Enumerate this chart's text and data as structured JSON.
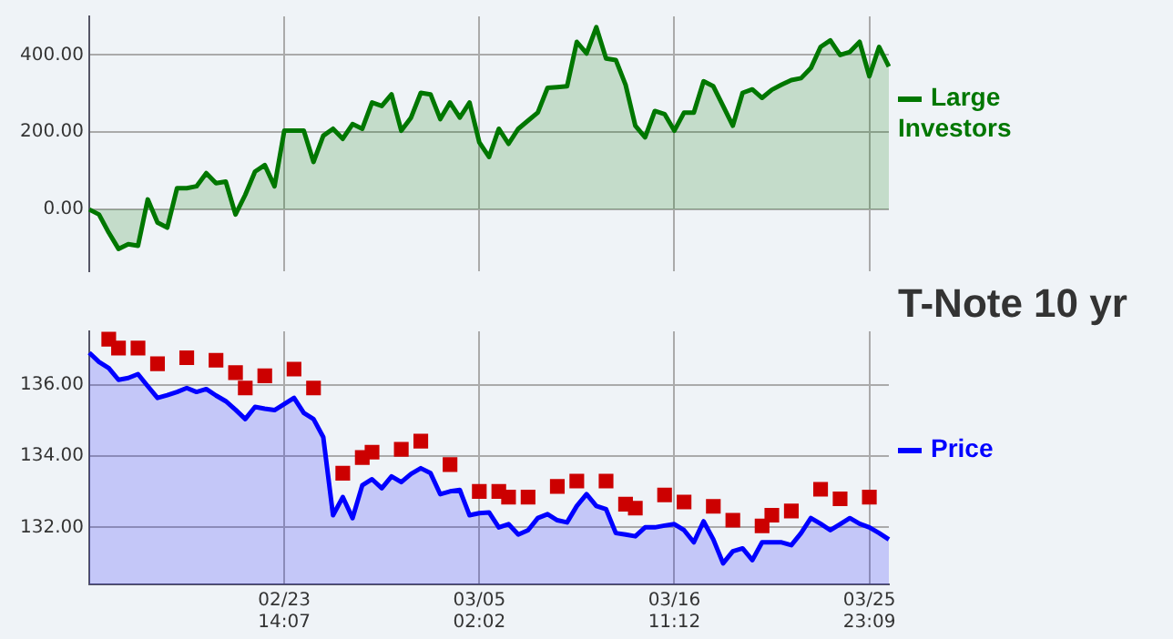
{
  "chart_data": [
    {
      "type": "area",
      "categories": [
        null,
        null,
        null,
        null,
        null,
        null,
        null,
        null,
        null,
        null,
        null,
        null,
        null,
        null,
        null,
        null,
        null,
        null,
        null,
        null,
        null,
        null,
        null,
        null,
        null,
        null,
        null,
        null,
        null,
        null,
        null,
        null,
        null,
        null,
        null,
        null,
        null,
        null,
        null,
        null,
        null,
        null,
        null,
        null,
        null,
        null,
        null,
        null,
        null,
        null,
        null,
        null,
        null,
        null,
        null,
        null,
        null,
        null,
        null,
        null,
        null,
        null,
        null,
        null,
        null,
        null,
        null,
        null,
        null,
        null,
        null,
        null,
        null,
        null,
        null,
        null,
        null,
        null,
        null,
        null,
        null,
        null,
        null
      ],
      "ylim": [
        -160,
        500
      ],
      "yticks": [
        {
          "value": 0,
          "label": "0.00"
        },
        {
          "value": 200,
          "label": "200.00"
        },
        {
          "value": 400,
          "label": "400.00"
        }
      ],
      "tick_labels": "y",
      "grid": true,
      "legend": "right",
      "series": [
        {
          "name": "Large Investors",
          "color": "#007700",
          "values": [
            0,
            -13,
            -60,
            -102,
            -90,
            -94,
            26,
            -34,
            -47,
            55,
            55,
            60,
            94,
            68,
            72,
            -13,
            38,
            98,
            115,
            60,
            204,
            204,
            204,
            123,
            191,
            209,
            183,
            221,
            209,
            277,
            268,
            298,
            204,
            238,
            302,
            298,
            234,
            277,
            238,
            277,
            174,
            136,
            209,
            170,
            209,
            230,
            251,
            315,
            317,
            319,
            434,
            404,
            472,
            391,
            387,
            323,
            217,
            187,
            255,
            247,
            204,
            251,
            251,
            332,
            319,
            268,
            217,
            302,
            311,
            289,
            310,
            323,
            335,
            340,
            366,
            421,
            438,
            400,
            408,
            434,
            345,
            421,
            370
          ]
        }
      ]
    },
    {
      "type": "area",
      "title": "T-Note 10 yr",
      "categories": [
        null,
        null,
        null,
        null,
        null,
        null,
        null,
        null,
        null,
        null,
        null,
        null,
        null,
        null,
        null,
        null,
        null,
        null,
        null,
        null,
        "02/23\n14:07",
        null,
        null,
        null,
        null,
        null,
        null,
        null,
        null,
        null,
        null,
        null,
        null,
        null,
        null,
        null,
        null,
        null,
        null,
        null,
        "03/05\n02:02",
        null,
        null,
        null,
        null,
        null,
        null,
        null,
        null,
        null,
        null,
        null,
        null,
        null,
        null,
        null,
        null,
        null,
        null,
        null,
        "03/16\n11:12",
        null,
        null,
        null,
        null,
        null,
        null,
        null,
        null,
        null,
        null,
        null,
        null,
        null,
        null,
        null,
        null,
        null,
        null,
        null,
        "03/25\n23:09",
        null,
        null
      ],
      "ylim": [
        130.4,
        137.5
      ],
      "yticks": [
        {
          "value": 132,
          "label": "132.00"
        },
        {
          "value": 134,
          "label": "134.00"
        },
        {
          "value": 136,
          "label": "136.00"
        }
      ],
      "grid": true,
      "legend": "right",
      "series": [
        {
          "name": "Price",
          "color": "#0000ff",
          "values": [
            136.9,
            136.64,
            136.47,
            136.14,
            136.19,
            136.3,
            135.96,
            135.63,
            135.71,
            135.8,
            135.91,
            135.8,
            135.88,
            135.7,
            135.54,
            135.3,
            135.04,
            135.38,
            135.33,
            135.29,
            135.46,
            135.63,
            135.21,
            135.04,
            134.53,
            132.34,
            132.85,
            132.26,
            133.18,
            133.35,
            133.1,
            133.43,
            133.27,
            133.5,
            133.66,
            133.52,
            132.93,
            133.01,
            133.05,
            132.34,
            132.4,
            132.42,
            132,
            132.09,
            131.8,
            131.92,
            132.26,
            132.37,
            132.2,
            132.14,
            132.6,
            132.93,
            132.6,
            132.51,
            131.84,
            131.8,
            131.75,
            132,
            132,
            132.05,
            132.09,
            131.92,
            131.58,
            132.17,
            131.66,
            130.99,
            131.33,
            131.41,
            131.08,
            131.58,
            131.58,
            131.58,
            131.5,
            131.84,
            132.26,
            132.1,
            131.92,
            132.09,
            132.26,
            132.1,
            132,
            131.84,
            131.66
          ]
        },
        {
          "type": "scatter",
          "color": "#cc0000",
          "marker": "square",
          "values": [
            null,
            null,
            137.28,
            137.03,
            null,
            137.03,
            null,
            136.59,
            null,
            null,
            136.76,
            null,
            null,
            136.69,
            null,
            136.34,
            135.91,
            null,
            136.25,
            null,
            null,
            136.44,
            null,
            135.91,
            null,
            null,
            133.52,
            null,
            133.96,
            134.11,
            null,
            null,
            134.19,
            null,
            134.42,
            null,
            null,
            133.76,
            null,
            null,
            133.01,
            null,
            133.01,
            132.85,
            null,
            132.85,
            null,
            null,
            133.15,
            null,
            133.3,
            null,
            null,
            133.3,
            null,
            132.65,
            132.54,
            null,
            null,
            132.91,
            null,
            132.71,
            null,
            null,
            132.59,
            null,
            132.2,
            null,
            null,
            132.04,
            132.34,
            null,
            132.46,
            null,
            null,
            133.07,
            null,
            132.8,
            null,
            null,
            132.85,
            null,
            null
          ]
        }
      ]
    }
  ]
}
